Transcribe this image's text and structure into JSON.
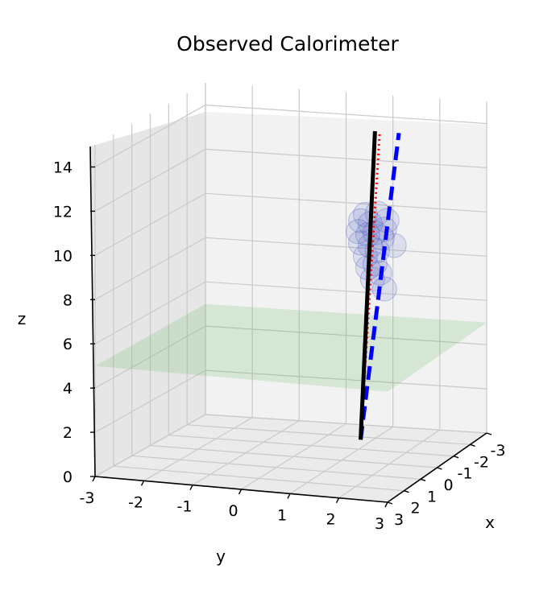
{
  "chart_data": {
    "type": "3d-scatter",
    "title": "Observed Calorimeter",
    "xlabel": "x",
    "ylabel": "y",
    "zlabel": "z",
    "xlim": [
      -3,
      3
    ],
    "ylim": [
      -3,
      3
    ],
    "zlim": [
      0,
      15
    ],
    "x_ticks": [
      "-3",
      "-2",
      "-1",
      "0",
      "1",
      "2",
      "3"
    ],
    "y_ticks": [
      "-3",
      "-2",
      "-1",
      "0",
      "1",
      "2",
      "3"
    ],
    "z_ticks": [
      "0",
      "2",
      "4",
      "6",
      "8",
      "10",
      "12",
      "14"
    ],
    "grid": true,
    "plane": {
      "z": 5,
      "color": "#2ca02c"
    },
    "series": [
      {
        "style": "solid",
        "color": "#000000",
        "start": {
          "x": 0,
          "y": 1.4,
          "z": 1
        },
        "end": {
          "x": 0,
          "y": 1.7,
          "z": 15
        }
      },
      {
        "style": "dotted",
        "color": "#ff0000",
        "start": {
          "x": 0,
          "y": 1.4,
          "z": 1
        },
        "end": {
          "x": 0,
          "y": 1.8,
          "z": 15
        }
      },
      {
        "style": "dashed",
        "color": "#0000ff",
        "start": {
          "x": 0,
          "y": 1.4,
          "z": 1
        },
        "end": {
          "x": 0,
          "y": 2.2,
          "z": 15
        }
      }
    ],
    "hits_color": "#4a5bc4",
    "hits": [
      {
        "x": 0,
        "y": 1.5,
        "z": 11.2
      },
      {
        "x": 0,
        "y": 1.75,
        "z": 11.3
      },
      {
        "x": 0,
        "y": 1.95,
        "z": 11.0
      },
      {
        "x": 0,
        "y": 1.4,
        "z": 10.9
      },
      {
        "x": 0,
        "y": 1.6,
        "z": 10.8
      },
      {
        "x": 0,
        "y": 1.9,
        "z": 10.6
      },
      {
        "x": 0,
        "y": 1.35,
        "z": 10.4
      },
      {
        "x": 0,
        "y": 1.55,
        "z": 10.3
      },
      {
        "x": 0,
        "y": 1.7,
        "z": 10.4
      },
      {
        "x": 0,
        "y": 1.85,
        "z": 10.2
      },
      {
        "x": 0,
        "y": 1.4,
        "z": 9.9
      },
      {
        "x": 0,
        "y": 1.6,
        "z": 9.8
      },
      {
        "x": 0,
        "y": 2.1,
        "z": 9.9
      },
      {
        "x": 0,
        "y": 1.75,
        "z": 9.6
      },
      {
        "x": 0,
        "y": 1.5,
        "z": 9.3
      },
      {
        "x": 0,
        "y": 1.7,
        "z": 9.0
      },
      {
        "x": 0,
        "y": 1.55,
        "z": 8.8
      },
      {
        "x": 0,
        "y": 1.8,
        "z": 8.6
      },
      {
        "x": 0,
        "y": 1.65,
        "z": 8.3
      },
      {
        "x": 0,
        "y": 1.9,
        "z": 7.9
      }
    ]
  }
}
